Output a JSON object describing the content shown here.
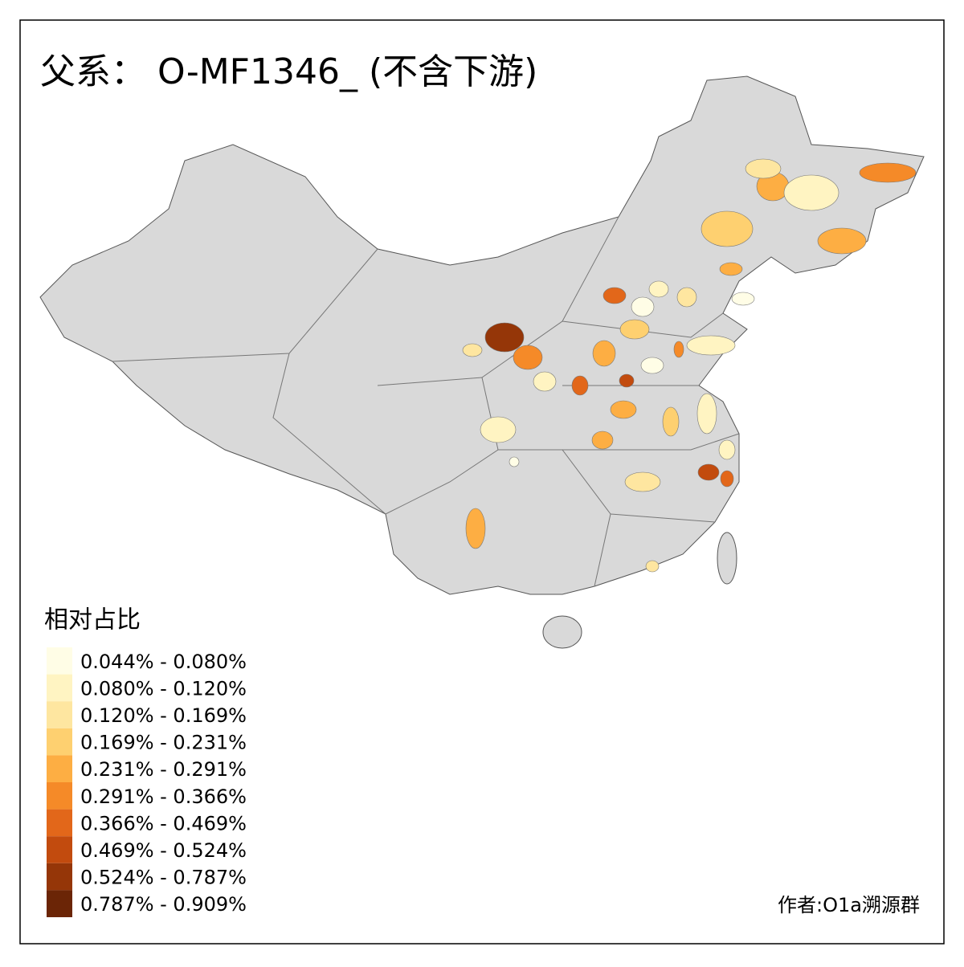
{
  "title": "父系： O-MF1346_ (不含下游)",
  "legend": {
    "title": "相对占比",
    "items": [
      {
        "label": "0.044% - 0.080%",
        "color": "#fffde6"
      },
      {
        "label": "0.080% - 0.120%",
        "color": "#fff4c2"
      },
      {
        "label": "0.120% - 0.169%",
        "color": "#fee6a0"
      },
      {
        "label": "0.169% - 0.231%",
        "color": "#fed070"
      },
      {
        "label": "0.231% - 0.291%",
        "color": "#fdae43"
      },
      {
        "label": "0.291% - 0.366%",
        "color": "#f58a28"
      },
      {
        "label": "0.366% - 0.469%",
        "color": "#e2671a"
      },
      {
        "label": "0.469% - 0.524%",
        "color": "#c24b0e"
      },
      {
        "label": "0.524% - 0.787%",
        "color": "#953608"
      },
      {
        "label": "0.787% - 0.909%",
        "color": "#6b2506"
      }
    ]
  },
  "credit": "作者:O1a溯源群"
}
